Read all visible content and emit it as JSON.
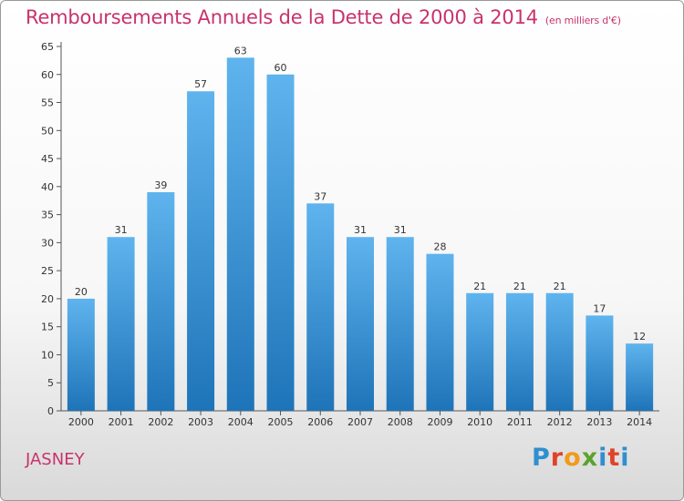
{
  "title": "Remboursements Annuels de la Dette de 2000 à 2014",
  "subtitle": "(en milliers d'€)",
  "commune": "JASNEY",
  "logo": {
    "letters": [
      "P",
      "r",
      "o",
      "x",
      "i",
      "t",
      "i"
    ],
    "colors": [
      "#2f8fd0",
      "#e0422a",
      "#f29a1b",
      "#5aa32c",
      "#2f8fd0",
      "#e0422a",
      "#2f8fd0"
    ]
  },
  "colors": {
    "bar_top": "#5fb4ee",
    "bar_bottom": "#1e74b8",
    "title": "#c8336c"
  },
  "chart_data": {
    "type": "bar",
    "categories": [
      "2000",
      "2001",
      "2002",
      "2003",
      "2004",
      "2005",
      "2006",
      "2007",
      "2008",
      "2009",
      "2010",
      "2011",
      "2012",
      "2013",
      "2014"
    ],
    "values": [
      20,
      31,
      39,
      57,
      63,
      60,
      37,
      31,
      31,
      28,
      21,
      21,
      21,
      17,
      12
    ],
    "ylim": [
      0,
      65
    ],
    "yticks": [
      0,
      5,
      10,
      15,
      20,
      25,
      30,
      35,
      40,
      45,
      50,
      55,
      60,
      65
    ],
    "grid": false,
    "data_labels": true
  }
}
